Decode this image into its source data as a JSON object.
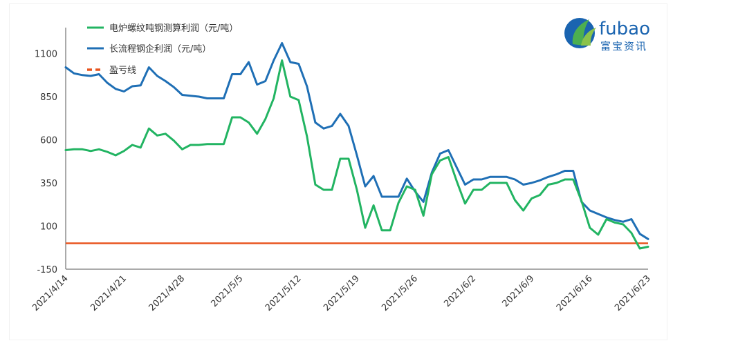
{
  "brand": {
    "name": "fubao",
    "name_cn": "富宝资讯",
    "colors": {
      "blue": "#1a64b0",
      "green": "#4caf50"
    }
  },
  "chart_data": {
    "type": "line",
    "title": "",
    "xlabel": "",
    "ylabel": "",
    "ylim": [
      -150,
      1250
    ],
    "yticks": [
      -150,
      100,
      350,
      600,
      850,
      1100
    ],
    "x_tick_labels": [
      "2021/4/14",
      "2021/4/21",
      "2021/4/28",
      "2021/5/5",
      "2021/5/12",
      "2021/5/19",
      "2021/5/26",
      "2021/6/2",
      "2021/6/9",
      "2021/6/16",
      "2021/6/23"
    ],
    "x_tick_index": [
      0,
      7,
      14,
      21,
      28,
      35,
      42,
      49,
      56,
      63,
      70
    ],
    "grid": false,
    "legend_position": "top-left",
    "series": [
      {
        "name": "电炉螺纹吨钢测算利润（元/吨）",
        "color": "#22b462",
        "values": [
          540,
          545,
          545,
          535,
          545,
          530,
          510,
          535,
          570,
          555,
          665,
          625,
          635,
          595,
          545,
          570,
          570,
          575,
          575,
          575,
          730,
          730,
          700,
          635,
          720,
          840,
          1060,
          850,
          830,
          620,
          340,
          310,
          310,
          490,
          490,
          310,
          90,
          220,
          75,
          75,
          235,
          330,
          310,
          160,
          400,
          480,
          500,
          360,
          230,
          310,
          310,
          350,
          350,
          350,
          250,
          190,
          260,
          280,
          340,
          350,
          370,
          370,
          245,
          90,
          50,
          140,
          120,
          110,
          60,
          -30,
          -20
        ]
      },
      {
        "name": "长流程钢企利润（元/吨）",
        "color": "#1f6fb5",
        "values": [
          1020,
          985,
          975,
          970,
          980,
          930,
          895,
          880,
          910,
          915,
          1020,
          970,
          940,
          905,
          860,
          855,
          850,
          840,
          840,
          840,
          980,
          980,
          1050,
          920,
          940,
          1060,
          1160,
          1050,
          1040,
          910,
          700,
          665,
          680,
          750,
          680,
          510,
          330,
          390,
          270,
          270,
          270,
          375,
          300,
          240,
          410,
          520,
          540,
          440,
          340,
          370,
          370,
          385,
          385,
          385,
          370,
          340,
          350,
          365,
          385,
          400,
          420,
          420,
          240,
          190,
          170,
          150,
          135,
          125,
          140,
          55,
          25
        ]
      },
      {
        "name": "盈亏线",
        "color": "#e8541e",
        "dashed_in_legend": true,
        "values": [
          0,
          0
        ]
      }
    ]
  }
}
